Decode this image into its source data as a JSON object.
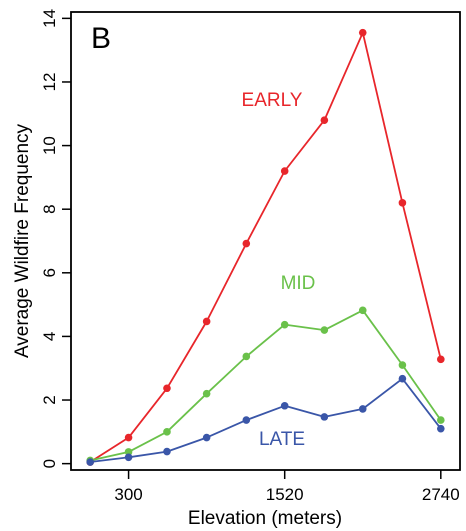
{
  "chart_data": {
    "type": "line",
    "panel_label": "B",
    "xlabel": "Elevation (meters)",
    "ylabel": "Average Wildfire Frequency",
    "x": [
      0,
      300,
      600,
      910,
      1220,
      1520,
      1830,
      2130,
      2440,
      2740
    ],
    "x_ticks": [
      300,
      1520,
      2740
    ],
    "x_tick_labels": [
      "300",
      "1520",
      "2740"
    ],
    "xlim": [
      -150,
      2890
    ],
    "y_ticks": [
      0,
      2,
      4,
      6,
      8,
      10,
      12,
      14
    ],
    "y_tick_labels": [
      "0",
      "2",
      "4",
      "6",
      "8",
      "10",
      "12",
      "14"
    ],
    "ylim": [
      -0.2,
      14.2
    ],
    "grid": false,
    "series": [
      {
        "name": "EARLY",
        "color": "#e8262b",
        "values": [
          0.05,
          0.82,
          2.37,
          4.47,
          6.92,
          9.2,
          10.8,
          13.55,
          8.2,
          3.28
        ]
      },
      {
        "name": "MID",
        "color": "#6ac14a",
        "values": [
          0.1,
          0.37,
          1.0,
          2.2,
          3.37,
          4.37,
          4.2,
          4.82,
          3.1,
          1.37
        ]
      },
      {
        "name": "LATE",
        "color": "#3a56a8",
        "values": [
          0.05,
          0.2,
          0.38,
          0.82,
          1.37,
          1.82,
          1.47,
          1.72,
          2.67,
          1.1
        ]
      }
    ]
  }
}
